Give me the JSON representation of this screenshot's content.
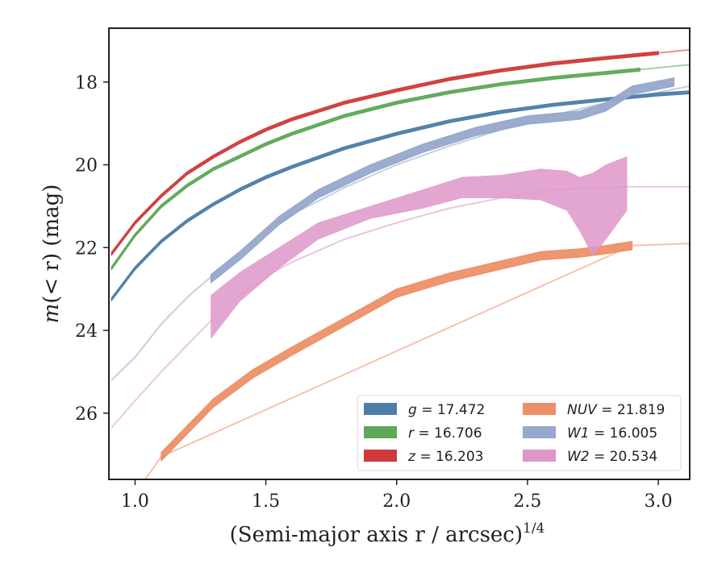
{
  "chart_data": {
    "type": "area",
    "xlabel": "(Semi-major axis r / arcsec)",
    "xlabel_exponent": "1/4",
    "ylabel_var": "m",
    "ylabel_inner": "(< r)",
    "ylabel_unit": "(mag)",
    "xlim": [
      0.9,
      3.12
    ],
    "ylim": [
      27.6,
      16.7
    ],
    "y_inverted": true,
    "xticks": [
      1.0,
      1.5,
      2.0,
      2.5,
      3.0
    ],
    "xtick_labels": [
      "1.0",
      "1.5",
      "2.0",
      "2.5",
      "3.0"
    ],
    "yticks": [
      18,
      20,
      22,
      24,
      26
    ],
    "ytick_labels": [
      "18",
      "20",
      "22",
      "24",
      "26"
    ],
    "grid": false,
    "legend_position": "lower-right",
    "series": [
      {
        "name": "g = 17.472",
        "band": "g",
        "value": "17.472",
        "color": "#4c7ea8",
        "band_x": [
          0.91,
          1.0,
          1.1,
          1.2,
          1.3,
          1.4,
          1.5,
          1.6,
          1.8,
          2.0,
          2.2,
          2.4,
          2.6,
          2.8,
          3.0,
          3.12
        ],
        "band_y": [
          23.25,
          22.5,
          21.85,
          21.35,
          20.95,
          20.6,
          20.3,
          20.05,
          19.6,
          19.25,
          18.95,
          18.72,
          18.55,
          18.42,
          18.3,
          18.25
        ],
        "band_width": 0.07,
        "extension_x": [],
        "extension_y": []
      },
      {
        "name": "r = 16.706",
        "band": "r",
        "value": "16.706",
        "color": "#5ea85a",
        "band_x": [
          0.91,
          1.0,
          1.1,
          1.2,
          1.3,
          1.4,
          1.5,
          1.6,
          1.8,
          2.0,
          2.2,
          2.4,
          2.6,
          2.8,
          2.93
        ],
        "band_y": [
          22.5,
          21.7,
          21.0,
          20.5,
          20.1,
          19.8,
          19.5,
          19.25,
          18.82,
          18.5,
          18.25,
          18.05,
          17.9,
          17.78,
          17.7
        ],
        "band_width": 0.07,
        "extension_x": [
          2.93,
          3.12
        ],
        "extension_y": [
          17.7,
          17.58
        ]
      },
      {
        "name": "z = 16.203",
        "band": "z",
        "value": "16.203",
        "color": "#d03a3a",
        "band_x": [
          0.91,
          1.0,
          1.1,
          1.2,
          1.3,
          1.4,
          1.5,
          1.6,
          1.8,
          2.0,
          2.2,
          2.4,
          2.6,
          2.8,
          3.0
        ],
        "band_y": [
          22.15,
          21.4,
          20.75,
          20.2,
          19.8,
          19.45,
          19.15,
          18.9,
          18.5,
          18.2,
          17.93,
          17.72,
          17.55,
          17.42,
          17.3
        ],
        "band_width": 0.07,
        "extension_x": [
          3.0,
          3.12
        ],
        "extension_y": [
          17.3,
          17.22
        ]
      },
      {
        "name": "NUV = 21.819",
        "band": "NUV",
        "value": "21.819",
        "color": "#ec9068",
        "band_x": [
          1.1,
          1.2,
          1.3,
          1.45,
          1.6,
          1.8,
          2.0,
          2.2,
          2.4,
          2.55,
          2.7,
          2.8,
          2.9
        ],
        "band_y": [
          27.05,
          26.4,
          25.75,
          25.05,
          24.5,
          23.8,
          23.1,
          22.72,
          22.42,
          22.2,
          22.13,
          22.05,
          21.95
        ],
        "band_width": 0.2,
        "extension_x": [
          1.0,
          1.05,
          1.1,
          2.9,
          3.12
        ],
        "extension_y": [
          27.9,
          27.5,
          27.05,
          21.95,
          21.9
        ]
      },
      {
        "name": "W1 = 16.005",
        "band": "W1",
        "value": "16.005",
        "color": "#96a8cb",
        "band_x": [
          1.29,
          1.4,
          1.55,
          1.7,
          1.9,
          2.1,
          2.3,
          2.5,
          2.7,
          2.8,
          2.9,
          3.06
        ],
        "band_y": [
          22.75,
          22.2,
          21.35,
          20.7,
          20.1,
          19.6,
          19.2,
          18.92,
          18.8,
          18.6,
          18.2,
          18.0
        ],
        "band_width": 0.2,
        "extension_x": [
          0.91,
          1.0,
          1.1,
          1.2,
          1.3,
          1.4,
          1.5,
          1.6,
          1.8,
          2.0,
          2.2,
          2.4,
          2.6,
          2.8,
          3.0,
          3.12
        ],
        "extension_y": [
          25.2,
          24.65,
          23.85,
          23.2,
          22.65,
          22.1,
          21.6,
          21.2,
          20.55,
          20.0,
          19.55,
          19.15,
          18.8,
          18.5,
          18.25,
          18.1
        ]
      },
      {
        "name": "W2 = 20.534",
        "band": "W2",
        "value": "20.534",
        "color": "#de96c8",
        "band_x": [
          1.29,
          1.4,
          1.55,
          1.7,
          1.9,
          2.1,
          2.25,
          2.4,
          2.55,
          2.65,
          2.7,
          2.75,
          2.8,
          2.88
        ],
        "band_y_upper": [
          23.15,
          22.6,
          22.0,
          21.4,
          21.0,
          20.6,
          20.3,
          20.25,
          20.1,
          20.15,
          20.3,
          20.2,
          20.0,
          19.8
        ],
        "band_y_lower": [
          24.2,
          23.3,
          22.5,
          21.8,
          21.3,
          21.05,
          20.8,
          20.8,
          20.85,
          21.1,
          21.6,
          22.2,
          21.8,
          21.1
        ],
        "extension_x": [
          0.91,
          1.0,
          1.1,
          1.2,
          1.3,
          1.4,
          1.5,
          1.6,
          1.8,
          2.0,
          2.2,
          2.4,
          2.6,
          2.88,
          3.12
        ],
        "extension_y": [
          26.35,
          25.7,
          25.0,
          24.35,
          23.7,
          23.15,
          22.7,
          22.35,
          21.8,
          21.4,
          21.05,
          20.8,
          20.6,
          20.53,
          20.53
        ]
      }
    ]
  }
}
